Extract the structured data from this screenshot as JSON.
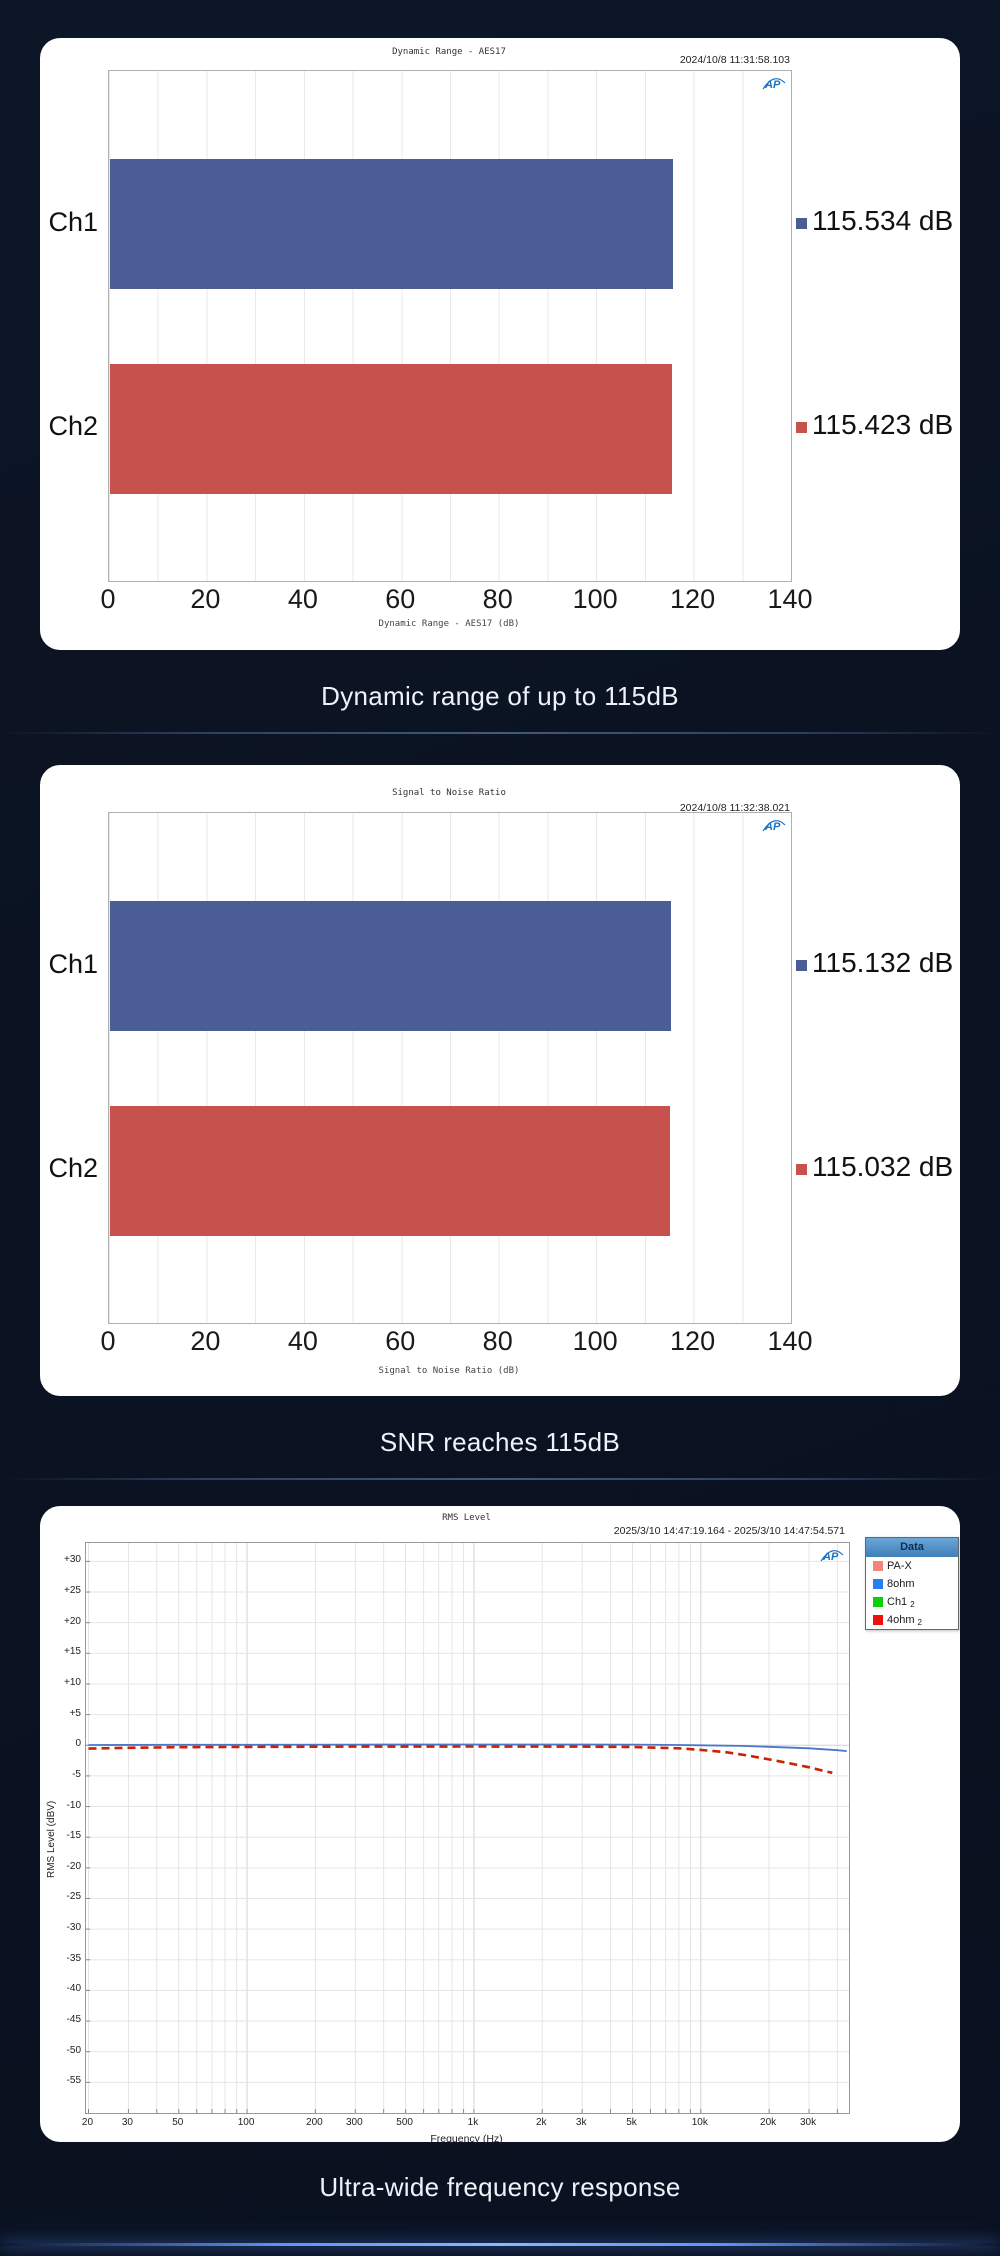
{
  "page": {
    "bg_color": "#0b1322",
    "captions": [
      "Dynamic range of up to 115dB",
      "SNR reaches 115dB",
      "Ultra-wide frequency response"
    ]
  },
  "logo": {
    "label": "AP",
    "color": "#1b72c4"
  },
  "chart_data": [
    {
      "type": "bar",
      "orientation": "horizontal",
      "title": "Dynamic Range - AES17",
      "timestamp": "2024/10/8 11:31:58.103",
      "categories": [
        "Ch1",
        "Ch2"
      ],
      "values": [
        115.534,
        115.423
      ],
      "value_labels": [
        "115.534 dB",
        "115.423 dB"
      ],
      "bar_colors": [
        "#4a5d94",
        "#c6514d"
      ],
      "xlabel": "Dynamic Range - AES17 (dB)",
      "xlim": [
        0,
        140
      ],
      "xticks": [
        0,
        20,
        40,
        60,
        80,
        100,
        120,
        140
      ],
      "grid_step": 10,
      "legend_position": "right"
    },
    {
      "type": "bar",
      "orientation": "horizontal",
      "title": "Signal to Noise Ratio",
      "timestamp": "2024/10/8 11:32:38.021",
      "categories": [
        "Ch1",
        "Ch2"
      ],
      "values": [
        115.132,
        115.032
      ],
      "value_labels": [
        "115.132 dB",
        "115.032 dB"
      ],
      "bar_colors": [
        "#4a5d94",
        "#c6514d"
      ],
      "xlabel": "Signal to Noise Ratio (dB)",
      "xlim": [
        0,
        140
      ],
      "xticks": [
        0,
        20,
        40,
        60,
        80,
        100,
        120,
        140
      ],
      "grid_step": 10,
      "legend_position": "right"
    },
    {
      "type": "line",
      "title": "RMS Level",
      "timestamp": "2025/3/10 14:47:19.164 -  2025/3/10 14:47:54.571",
      "xlabel": "Frequency (Hz)",
      "ylabel": "RMS Level (dBV)",
      "xscale": "log",
      "xlim": [
        19.5,
        45000
      ],
      "ylim": [
        -60,
        33
      ],
      "grid": true,
      "yticks": [
        {
          "v": 30,
          "l": "+30"
        },
        {
          "v": 25,
          "l": "+25"
        },
        {
          "v": 20,
          "l": "+20"
        },
        {
          "v": 15,
          "l": "+15"
        },
        {
          "v": 10,
          "l": "+10"
        },
        {
          "v": 5,
          "l": "+5"
        },
        {
          "v": 0,
          "l": "0"
        },
        {
          "v": -5,
          "l": "-5"
        },
        {
          "v": -10,
          "l": "-10"
        },
        {
          "v": -15,
          "l": "-15"
        },
        {
          "v": -20,
          "l": "-20"
        },
        {
          "v": -25,
          "l": "-25"
        },
        {
          "v": -30,
          "l": "-30"
        },
        {
          "v": -35,
          "l": "-35"
        },
        {
          "v": -40,
          "l": "-40"
        },
        {
          "v": -45,
          "l": "-45"
        },
        {
          "v": -50,
          "l": "-50"
        },
        {
          "v": -55,
          "l": "-55"
        }
      ],
      "xticks": [
        {
          "v": 20,
          "l": "20"
        },
        {
          "v": 30,
          "l": "30"
        },
        {
          "v": 50,
          "l": "50"
        },
        {
          "v": 100,
          "l": "100"
        },
        {
          "v": 200,
          "l": "200"
        },
        {
          "v": 300,
          "l": "300"
        },
        {
          "v": 500,
          "l": "500"
        },
        {
          "v": 1000,
          "l": "1k"
        },
        {
          "v": 2000,
          "l": "2k"
        },
        {
          "v": 3000,
          "l": "3k"
        },
        {
          "v": 5000,
          "l": "5k"
        },
        {
          "v": 10000,
          "l": "10k"
        },
        {
          "v": 20000,
          "l": "20k"
        },
        {
          "v": 30000,
          "l": "30k"
        }
      ],
      "legend": {
        "title": "Data",
        "entries": [
          {
            "label": "PA-X",
            "sub": "",
            "color": "#f4827f"
          },
          {
            "label": "8ohm",
            "sub": "",
            "color": "#2a7ff0"
          },
          {
            "label": "Ch1",
            "sub": "2",
            "color": "#0ad00a"
          },
          {
            "label": "4ohm",
            "sub": "2",
            "color": "#ee1010"
          }
        ]
      },
      "series": [
        {
          "name": "8ohm",
          "color": "#4a77c8",
          "style": "solid",
          "width": 1.8,
          "points": [
            [
              20,
              0.05
            ],
            [
              50,
              0.08
            ],
            [
              100,
              0.08
            ],
            [
              300,
              0.1
            ],
            [
              1000,
              0.12
            ],
            [
              3000,
              0.12
            ],
            [
              5000,
              0.1
            ],
            [
              8000,
              0.05
            ],
            [
              10000,
              0
            ],
            [
              15000,
              -0.1
            ],
            [
              20000,
              -0.25
            ],
            [
              30000,
              -0.5
            ],
            [
              40000,
              -0.8
            ],
            [
              44000,
              -0.95
            ]
          ]
        },
        {
          "name": "4ohm",
          "color": "#cc2200",
          "style": "dashed",
          "width": 2.6,
          "points": [
            [
              20,
              -0.55
            ],
            [
              30,
              -0.42
            ],
            [
              50,
              -0.32
            ],
            [
              100,
              -0.27
            ],
            [
              300,
              -0.22
            ],
            [
              1000,
              -0.2
            ],
            [
              3000,
              -0.22
            ],
            [
              5000,
              -0.28
            ],
            [
              8000,
              -0.5
            ],
            [
              10000,
              -0.75
            ],
            [
              13000,
              -1.15
            ],
            [
              16000,
              -1.65
            ],
            [
              20000,
              -2.3
            ],
            [
              25000,
              -3.0
            ],
            [
              30000,
              -3.6
            ],
            [
              35000,
              -4.2
            ],
            [
              38000,
              -4.5
            ]
          ]
        }
      ]
    }
  ]
}
